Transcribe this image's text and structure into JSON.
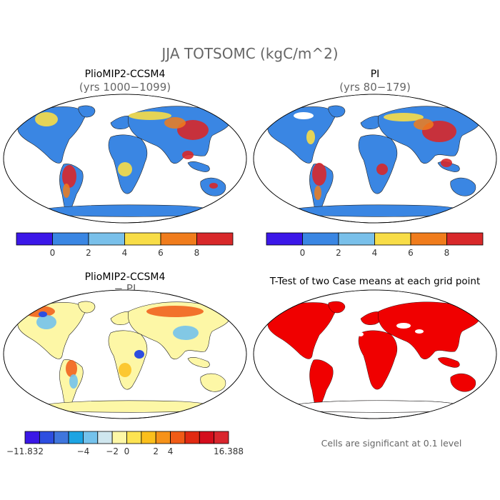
{
  "figure": {
    "title": "JJA TOTSOMC (kgC/m^2)",
    "footnote": "Cells are significant at 0.1 level"
  },
  "panels": [
    {
      "title": "PlioMIP2-CCSM4",
      "subtitle": "(yrs 1000−1099)"
    },
    {
      "title": "PI",
      "subtitle": "(yrs 80−179)"
    },
    {
      "title": "PlioMIP2-CCSM4",
      "subtitle": "− PI"
    },
    {
      "title": "T-Test of two Case means at each grid point",
      "subtitle": ""
    }
  ],
  "colorbar_abs": {
    "colors": [
      "#3b17e8",
      "#3a86e3",
      "#79c0ea",
      "#f8dd47",
      "#f07c1c",
      "#d8282a"
    ],
    "tick_labels": [
      "0",
      "2",
      "4",
      "6",
      "8"
    ]
  },
  "colorbar_diff": {
    "colors": [
      "#3a17e6",
      "#2d4ee0",
      "#3f76dd",
      "#1ca4e3",
      "#74c2ec",
      "#cfe6ee",
      "#fdf7a6",
      "#fde352",
      "#fbbf1c",
      "#f69219",
      "#f05b16",
      "#e12a12",
      "#d40d1c",
      "#d9262e"
    ],
    "tick_labels": [
      "−11.832",
      "−4",
      "−2",
      "0",
      "2",
      "4",
      "16.388"
    ]
  },
  "colors": {
    "significant": "#f00000",
    "map_outline": "#000000"
  }
}
